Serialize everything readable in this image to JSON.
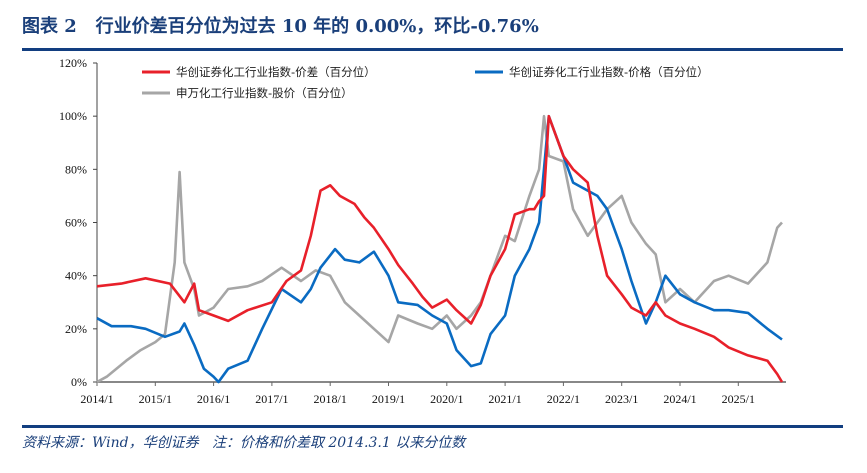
{
  "title": "图表 2   行业价差百分位为过去 10 年的 0.00%，环比-0.76%",
  "footnote": "资料来源：Wind，华创证券   注：价格和价差取 2014.3.1 以来分位数",
  "colors": {
    "title": "#1a3f7a",
    "rule": "#123e80",
    "spread": "#e8202a",
    "price": "#0a6bc2",
    "stock": "#a6a6a6"
  },
  "chart_data": {
    "type": "line",
    "ylim": [
      0,
      120
    ],
    "yticks": [
      "0%",
      "20%",
      "40%",
      "60%",
      "80%",
      "100%",
      "120%"
    ],
    "xticks": [
      "2014/1",
      "2015/1",
      "2016/1",
      "2017/1",
      "2018/1",
      "2019/1",
      "2020/1",
      "2021/1",
      "2022/1",
      "2023/1",
      "2024/1",
      "2025/1"
    ],
    "xlim": [
      "2014-01",
      "2025-10"
    ],
    "grid": false,
    "legend": "top",
    "series": [
      {
        "name": "华创证券化工行业指数-价差（百分位）",
        "color": "#e8202a",
        "points": [
          [
            "2014-01",
            36
          ],
          [
            "2014-06",
            37
          ],
          [
            "2014-11",
            39
          ],
          [
            "2015-04",
            37
          ],
          [
            "2015-07",
            30
          ],
          [
            "2015-09",
            37
          ],
          [
            "2015-10",
            27
          ],
          [
            "2016-01",
            25
          ],
          [
            "2016-04",
            23
          ],
          [
            "2016-08",
            27
          ],
          [
            "2017-01",
            30
          ],
          [
            "2017-04",
            38
          ],
          [
            "2017-07",
            42
          ],
          [
            "2017-09",
            55
          ],
          [
            "2017-11",
            72
          ],
          [
            "2018-01",
            74
          ],
          [
            "2018-03",
            70
          ],
          [
            "2018-06",
            67
          ],
          [
            "2018-08",
            62
          ],
          [
            "2018-10",
            58
          ],
          [
            "2019-01",
            50
          ],
          [
            "2019-03",
            44
          ],
          [
            "2019-06",
            37
          ],
          [
            "2019-08",
            32
          ],
          [
            "2019-10",
            28
          ],
          [
            "2020-01",
            31
          ],
          [
            "2020-03",
            27
          ],
          [
            "2020-06",
            22
          ],
          [
            "2020-08",
            29
          ],
          [
            "2020-10",
            40
          ],
          [
            "2021-01",
            50
          ],
          [
            "2021-03",
            63
          ],
          [
            "2021-06",
            65
          ],
          [
            "2021-07",
            65
          ],
          [
            "2021-08",
            68
          ],
          [
            "2021-09",
            70
          ],
          [
            "2021-10",
            100
          ],
          [
            "2022-01",
            85
          ],
          [
            "2022-03",
            80
          ],
          [
            "2022-06",
            75
          ],
          [
            "2022-08",
            55
          ],
          [
            "2022-10",
            40
          ],
          [
            "2023-01",
            33
          ],
          [
            "2023-03",
            28
          ],
          [
            "2023-06",
            25
          ],
          [
            "2023-08",
            30
          ],
          [
            "2023-10",
            25
          ],
          [
            "2024-01",
            22
          ],
          [
            "2024-04",
            20
          ],
          [
            "2024-08",
            17
          ],
          [
            "2024-11",
            13
          ],
          [
            "2025-03",
            10
          ],
          [
            "2025-07",
            8
          ],
          [
            "2025-09",
            3
          ],
          [
            "2025-10",
            0
          ]
        ]
      },
      {
        "name": "华创证券化工行业指数-价格（百分位）",
        "color": "#0a6bc2",
        "points": [
          [
            "2014-01",
            24
          ],
          [
            "2014-04",
            21
          ],
          [
            "2014-08",
            21
          ],
          [
            "2014-11",
            20
          ],
          [
            "2015-03",
            17
          ],
          [
            "2015-06",
            19
          ],
          [
            "2015-07",
            22
          ],
          [
            "2015-09",
            14
          ],
          [
            "2015-11",
            5
          ],
          [
            "2016-01",
            2
          ],
          [
            "2016-02",
            0
          ],
          [
            "2016-04",
            5
          ],
          [
            "2016-08",
            8
          ],
          [
            "2016-11",
            20
          ],
          [
            "2017-03",
            35
          ],
          [
            "2017-07",
            30
          ],
          [
            "2017-09",
            35
          ],
          [
            "2017-11",
            43
          ],
          [
            "2018-02",
            50
          ],
          [
            "2018-04",
            46
          ],
          [
            "2018-07",
            45
          ],
          [
            "2018-10",
            49
          ],
          [
            "2018-11",
            46
          ],
          [
            "2019-01",
            40
          ],
          [
            "2019-03",
            30
          ],
          [
            "2019-07",
            29
          ],
          [
            "2019-10",
            25
          ],
          [
            "2020-01",
            22
          ],
          [
            "2020-03",
            12
          ],
          [
            "2020-06",
            6
          ],
          [
            "2020-08",
            7
          ],
          [
            "2020-10",
            18
          ],
          [
            "2021-01",
            25
          ],
          [
            "2021-03",
            40
          ],
          [
            "2021-06",
            50
          ],
          [
            "2021-08",
            60
          ],
          [
            "2021-10",
            100
          ],
          [
            "2022-01",
            85
          ],
          [
            "2022-03",
            75
          ],
          [
            "2022-06",
            72
          ],
          [
            "2022-08",
            70
          ],
          [
            "2022-10",
            65
          ],
          [
            "2023-01",
            50
          ],
          [
            "2023-03",
            38
          ],
          [
            "2023-06",
            22
          ],
          [
            "2023-08",
            30
          ],
          [
            "2023-10",
            40
          ],
          [
            "2024-01",
            33
          ],
          [
            "2024-04",
            30
          ],
          [
            "2024-08",
            27
          ],
          [
            "2024-11",
            27
          ],
          [
            "2025-03",
            26
          ],
          [
            "2025-07",
            20
          ],
          [
            "2025-10",
            16
          ]
        ]
      },
      {
        "name": "申万化工行业指数-股价（百分位）",
        "color": "#a6a6a6",
        "points": [
          [
            "2014-01",
            0
          ],
          [
            "2014-03",
            2
          ],
          [
            "2014-07",
            8
          ],
          [
            "2014-10",
            12
          ],
          [
            "2015-01",
            15
          ],
          [
            "2015-03",
            18
          ],
          [
            "2015-05",
            45
          ],
          [
            "2015-06",
            79
          ],
          [
            "2015-07",
            45
          ],
          [
            "2015-09",
            35
          ],
          [
            "2015-10",
            25
          ],
          [
            "2016-01",
            28
          ],
          [
            "2016-04",
            35
          ],
          [
            "2016-08",
            36
          ],
          [
            "2016-11",
            38
          ],
          [
            "2017-03",
            43
          ],
          [
            "2017-07",
            38
          ],
          [
            "2017-10",
            42
          ],
          [
            "2018-01",
            40
          ],
          [
            "2018-04",
            30
          ],
          [
            "2018-07",
            25
          ],
          [
            "2018-10",
            20
          ],
          [
            "2019-01",
            15
          ],
          [
            "2019-03",
            25
          ],
          [
            "2019-07",
            22
          ],
          [
            "2019-10",
            20
          ],
          [
            "2020-01",
            25
          ],
          [
            "2020-03",
            20
          ],
          [
            "2020-06",
            25
          ],
          [
            "2020-08",
            30
          ],
          [
            "2020-10",
            40
          ],
          [
            "2021-01",
            55
          ],
          [
            "2021-03",
            53
          ],
          [
            "2021-06",
            70
          ],
          [
            "2021-08",
            80
          ],
          [
            "2021-09",
            100
          ],
          [
            "2021-10",
            85
          ],
          [
            "2022-01",
            83
          ],
          [
            "2022-03",
            65
          ],
          [
            "2022-06",
            55
          ],
          [
            "2022-08",
            60
          ],
          [
            "2022-10",
            65
          ],
          [
            "2023-01",
            70
          ],
          [
            "2023-03",
            60
          ],
          [
            "2023-06",
            52
          ],
          [
            "2023-08",
            48
          ],
          [
            "2023-10",
            30
          ],
          [
            "2024-01",
            35
          ],
          [
            "2024-04",
            30
          ],
          [
            "2024-08",
            38
          ],
          [
            "2024-11",
            40
          ],
          [
            "2025-03",
            37
          ],
          [
            "2025-07",
            45
          ],
          [
            "2025-09",
            58
          ],
          [
            "2025-10",
            60
          ]
        ]
      }
    ]
  }
}
